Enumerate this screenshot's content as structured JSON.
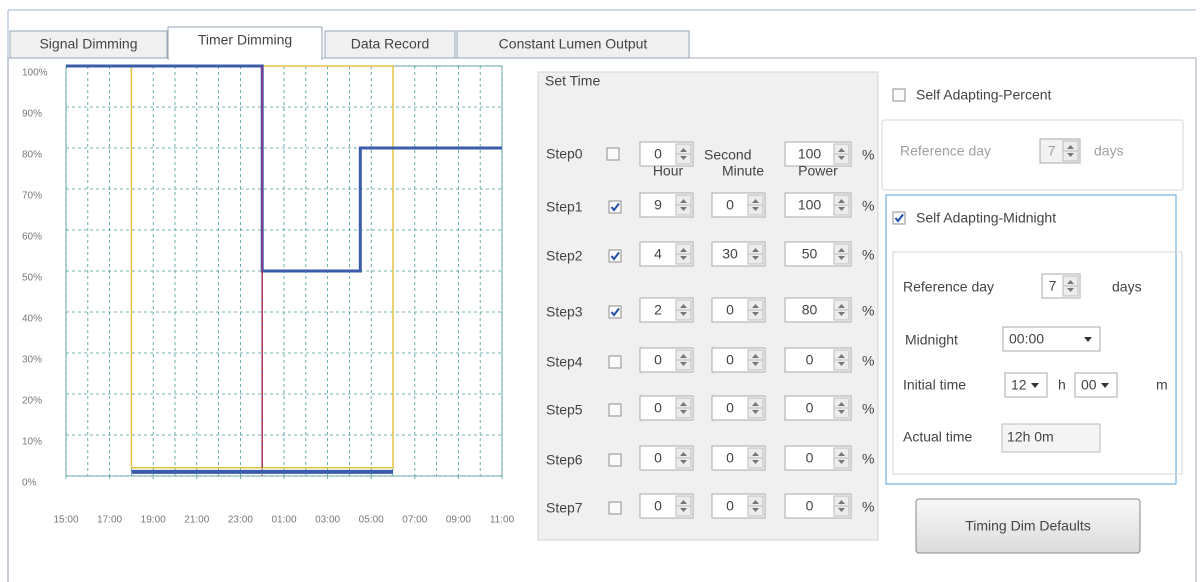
{
  "tabs": [
    {
      "label": "Signal Dimming"
    },
    {
      "label": "Timer Dimming",
      "active": true
    },
    {
      "label": "Data Record"
    },
    {
      "label": "Constant Lumen Output"
    }
  ],
  "chart_data": {
    "type": "line",
    "xlim": [
      0,
      20
    ],
    "xticks": [
      {
        "value": 0,
        "label": "15:00"
      },
      {
        "value": 2,
        "label": "17:00"
      },
      {
        "value": 4,
        "label": "19:00"
      },
      {
        "value": 6,
        "label": "21:00"
      },
      {
        "value": 8,
        "label": "23:00"
      },
      {
        "value": 10,
        "label": "01:00"
      },
      {
        "value": 12,
        "label": "03:00"
      },
      {
        "value": 14,
        "label": "05:00"
      },
      {
        "value": 16,
        "label": "07:00"
      },
      {
        "value": 18,
        "label": "09:00"
      },
      {
        "value": 20,
        "label": "11:00"
      }
    ],
    "xgrid": [
      0,
      1,
      2,
      3,
      4,
      5,
      6,
      7,
      8,
      9,
      10,
      11,
      12,
      13,
      14,
      15,
      16,
      17,
      18,
      19,
      20
    ],
    "ylim": [
      0,
      100
    ],
    "yticks": [
      {
        "value": 0,
        "label": "0%"
      },
      {
        "value": 10,
        "label": "10%"
      },
      {
        "value": 20,
        "label": "20%"
      },
      {
        "value": 30,
        "label": "30%"
      },
      {
        "value": 40,
        "label": "40%"
      },
      {
        "value": 50,
        "label": "50%"
      },
      {
        "value": 60,
        "label": "60%"
      },
      {
        "value": 70,
        "label": "70%"
      },
      {
        "value": 80,
        "label": "80%"
      },
      {
        "value": 90,
        "label": "90%"
      },
      {
        "value": 100,
        "label": "100%"
      }
    ],
    "grid": true,
    "series": [
      {
        "color": "#e6c440",
        "width": 1.5,
        "x": [
          3,
          3,
          15,
          15,
          3
        ],
        "values": [
          2,
          100,
          100,
          2,
          2
        ]
      },
      {
        "color": "#3b5bab",
        "width": 3,
        "x": [
          0,
          9,
          9,
          13.5,
          13.5,
          20
        ],
        "values": [
          100,
          100,
          50,
          50,
          80,
          80
        ]
      },
      {
        "color": "#8a3a8a",
        "width": 1.5,
        "x": [
          9,
          9
        ],
        "values": [
          100,
          2
        ]
      },
      {
        "color": "#c03030",
        "width": 1,
        "dash": true,
        "x": [
          9,
          9
        ],
        "values": [
          50,
          0
        ]
      },
      {
        "color": "#3b5bab",
        "width": 4,
        "x": [
          3,
          15
        ],
        "values": [
          1,
          1
        ]
      }
    ]
  },
  "set_time": {
    "title": "Set Time",
    "step0": {
      "label": "Step0",
      "checked": false,
      "value": 0,
      "unit": "Second",
      "power": 100
    },
    "headers": [
      "Hour",
      "Minute",
      "Power"
    ],
    "percent": "%",
    "steps": [
      {
        "label": "Step1",
        "checked": true,
        "hour": 9,
        "minute": 0,
        "power": 100
      },
      {
        "label": "Step2",
        "checked": true,
        "hour": 4,
        "minute": 30,
        "power": 50
      },
      {
        "label": "Step3",
        "checked": true,
        "hour": 2,
        "minute": 0,
        "power": 80
      },
      {
        "label": "Step4",
        "checked": false,
        "hour": 0,
        "minute": 0,
        "power": 0
      },
      {
        "label": "Step5",
        "checked": false,
        "hour": 0,
        "minute": 0,
        "power": 0
      },
      {
        "label": "Step6",
        "checked": false,
        "hour": 0,
        "minute": 0,
        "power": 0
      },
      {
        "label": "Step7",
        "checked": false,
        "hour": 0,
        "minute": 0,
        "power": 0
      }
    ]
  },
  "self_adapting_percent": {
    "label": "Self Adapting-Percent",
    "checked": false,
    "reference_label": "Reference day",
    "reference_value": 7,
    "unit": "days"
  },
  "self_adapting_midnight": {
    "label": "Self Adapting-Midnight",
    "checked": true,
    "reference_label": "Reference day",
    "reference_value": 7,
    "unit": "days",
    "midnight_label": "Midnight",
    "midnight": "00:00",
    "initial_label": "Initial time",
    "initial_hour": "12",
    "hour_unit": "h",
    "initial_minute": "00",
    "minute_unit": "m",
    "actual_label": "Actual time",
    "actual": "12h 0m"
  },
  "button": "Timing Dim Defaults"
}
